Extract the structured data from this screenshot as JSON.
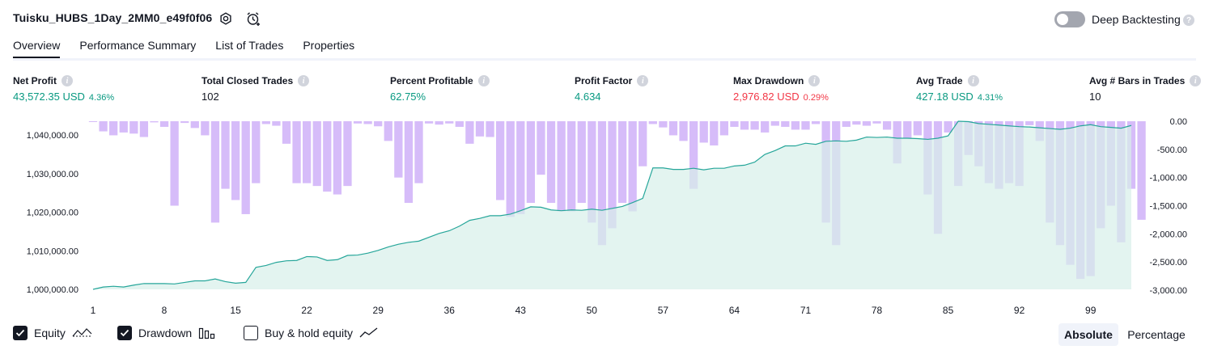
{
  "header": {
    "strategy_name": "Tuisku_HUBS_1Day_2MM0_e49f0f06",
    "settings_icon": "gear-icon",
    "alert_icon": "alarm-clock-plus-icon",
    "deep_backtesting_label": "Deep Backtesting",
    "deep_backtesting_enabled": false,
    "help_icon": "question-mark-icon"
  },
  "tabs": [
    {
      "label": "Overview",
      "active": true
    },
    {
      "label": "Performance Summary",
      "active": false
    },
    {
      "label": "List of Trades",
      "active": false
    },
    {
      "label": "Properties",
      "active": false
    }
  ],
  "metrics": [
    {
      "label": "Net Profit",
      "value": "43,572.35 USD",
      "sub": "4.36%",
      "color": "#089981"
    },
    {
      "label": "Total Closed Trades",
      "value": "102",
      "sub": "",
      "color": "#131722"
    },
    {
      "label": "Percent Profitable",
      "value": "62.75%",
      "sub": "",
      "color": "#089981"
    },
    {
      "label": "Profit Factor",
      "value": "4.634",
      "sub": "",
      "color": "#089981"
    },
    {
      "label": "Max Drawdown",
      "value": "2,976.82 USD",
      "sub": "0.29%",
      "color": "#f23645"
    },
    {
      "label": "Avg Trade",
      "value": "427.18 USD",
      "sub": "4.31%",
      "color": "#089981"
    },
    {
      "label": "Avg # Bars in Trades",
      "value": "10",
      "sub": "",
      "color": "#131722"
    }
  ],
  "chart_data": {
    "type": "line",
    "x_ticks": [
      "1",
      "8",
      "15",
      "22",
      "29",
      "36",
      "43",
      "50",
      "57",
      "64",
      "71",
      "78",
      "85",
      "92",
      "99"
    ],
    "left_axis": {
      "ticks": [
        "1,000,000.00",
        "1,010,000.00",
        "1,020,000.00",
        "1,030,000.00",
        "1,040,000.00"
      ],
      "ylim": [
        1000000,
        1043600
      ]
    },
    "right_axis": {
      "ticks": [
        "0.00",
        "-500.00",
        "-1,000.00",
        "-1,500.00",
        "-2,000.00",
        "-2,500.00",
        "-3,000.00"
      ],
      "ylim": [
        -3000,
        0
      ]
    },
    "series": [
      {
        "name": "Equity",
        "color": "#26a69a",
        "fill": "#d7f0ea",
        "values": [
          1000000,
          1000600,
          1000800,
          1000600,
          1001100,
          1001500,
          1001500,
          1001500,
          1001400,
          1001800,
          1002200,
          1002200,
          1002700,
          1002000,
          1001600,
          1001800,
          1005700,
          1006200,
          1007000,
          1007400,
          1007500,
          1008500,
          1008400,
          1007500,
          1007700,
          1008800,
          1008900,
          1009400,
          1010100,
          1011000,
          1011700,
          1012200,
          1012500,
          1013500,
          1014500,
          1015200,
          1016400,
          1017900,
          1018400,
          1019100,
          1019100,
          1019500,
          1020400,
          1021400,
          1021300,
          1020600,
          1020400,
          1020600,
          1020500,
          1020800,
          1020500,
          1021000,
          1021500,
          1022500,
          1023600,
          1031500,
          1031500,
          1031100,
          1031100,
          1031400,
          1031000,
          1031400,
          1031400,
          1032000,
          1032200,
          1033000,
          1035000,
          1036000,
          1037200,
          1037200,
          1037900,
          1037600,
          1038400,
          1038500,
          1038400,
          1038700,
          1039500,
          1039400,
          1039500,
          1039200,
          1039200,
          1039100,
          1038900,
          1039200,
          1039800,
          1043600,
          1043500,
          1043000,
          1042800,
          1042600,
          1042400,
          1042200,
          1042100,
          1041900,
          1041700,
          1041500,
          1041800,
          1042400,
          1042700,
          1042200,
          1042000,
          1041800,
          1042500
        ]
      },
      {
        "name": "Drawdown",
        "color": "#c8a6f7",
        "values": [
          0,
          -180,
          -250,
          -200,
          -220,
          -280,
          -20,
          -100,
          -1500,
          -30,
          -120,
          -250,
          -1800,
          -1200,
          -1400,
          -1650,
          -1100,
          -50,
          -80,
          -400,
          -1100,
          -1100,
          -1150,
          -1250,
          -1300,
          -1150,
          -40,
          -50,
          -90,
          -350,
          -1000,
          -1450,
          -1100,
          -40,
          -60,
          -40,
          -100,
          -400,
          -270,
          -280,
          -1400,
          -1700,
          -1650,
          -1450,
          -950,
          -1450,
          -1600,
          -1600,
          -1450,
          -1800,
          -2200,
          -1900,
          -1450,
          -1600,
          -800,
          -50,
          -110,
          -250,
          -350,
          -1200,
          -380,
          -430,
          -250,
          -100,
          -150,
          -150,
          -200,
          -80,
          -100,
          -150,
          -150,
          -50,
          -1800,
          -2200,
          -100,
          -60,
          -80,
          -40,
          -150,
          -750,
          -300,
          -250,
          -1300,
          -2000,
          -200,
          -1150,
          -600,
          -800,
          -1100,
          -1200,
          -1100,
          -1150,
          -70,
          -350,
          -1800,
          -2200,
          -2550,
          -2800,
          -2750,
          -1900,
          -1500,
          -2150,
          -1200,
          -1750
        ]
      }
    ],
    "legend": [
      {
        "label": "Equity",
        "checked": true,
        "icon": "equity-line-icon"
      },
      {
        "label": "Drawdown",
        "checked": true,
        "icon": "drawdown-bars-icon"
      },
      {
        "label": "Buy & hold equity",
        "checked": false,
        "icon": "buy-hold-line-icon"
      }
    ],
    "scale_mode": {
      "options": [
        "Absolute",
        "Percentage"
      ],
      "selected": "Absolute"
    }
  }
}
